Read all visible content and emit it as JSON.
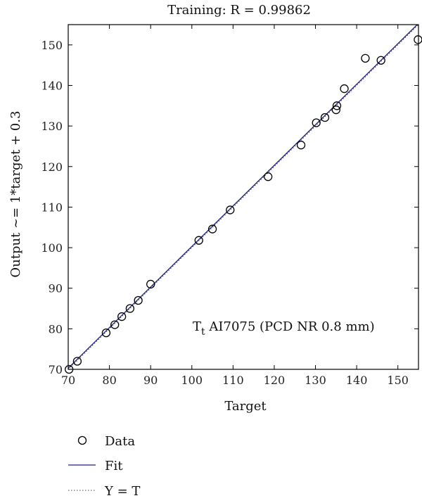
{
  "chart_data": {
    "type": "scatter",
    "title": "Training: R = 0.99862",
    "xlabel": "Target",
    "ylabel": "Output ~= 1*target + 0.3",
    "xlim": [
      70,
      155
    ],
    "ylim": [
      70,
      155
    ],
    "xticks": [
      70,
      80,
      90,
      100,
      110,
      120,
      130,
      140,
      150
    ],
    "yticks": [
      70,
      80,
      90,
      100,
      110,
      120,
      130,
      140,
      150
    ],
    "annotation": {
      "main": "T",
      "sub": "t",
      "rest": " AI7075 (PCD NR 0.8 mm)"
    },
    "fit": {
      "slope": 1.0,
      "intercept": 0.3
    },
    "series": [
      {
        "name": "Data",
        "points": [
          [
            70.2,
            70.0
          ],
          [
            72.2,
            72.0
          ],
          [
            79.2,
            79.0
          ],
          [
            81.3,
            81.0
          ],
          [
            83.0,
            83.0
          ],
          [
            85.0,
            85.0
          ],
          [
            87.0,
            87.0
          ],
          [
            90.0,
            91.0
          ],
          [
            101.7,
            101.8
          ],
          [
            105.0,
            104.6
          ],
          [
            109.3,
            109.3
          ],
          [
            118.5,
            117.5
          ],
          [
            126.5,
            125.3
          ],
          [
            130.2,
            130.8
          ],
          [
            132.3,
            132.1
          ],
          [
            135.0,
            134.0
          ],
          [
            135.2,
            135.0
          ],
          [
            137.0,
            139.2
          ],
          [
            142.1,
            146.7
          ],
          [
            145.9,
            146.2
          ],
          [
            154.9,
            151.3
          ]
        ]
      }
    ],
    "legend": [
      {
        "label": "Data",
        "marker": "circle"
      },
      {
        "label": "Fit",
        "line": "solid",
        "color": "#1f1f7a"
      },
      {
        "label": "Y = T",
        "line": "dotted",
        "color": "#444444"
      }
    ],
    "colors": {
      "fit": "#1f1f7a",
      "frame": "#000000",
      "marker": "#000000"
    }
  }
}
